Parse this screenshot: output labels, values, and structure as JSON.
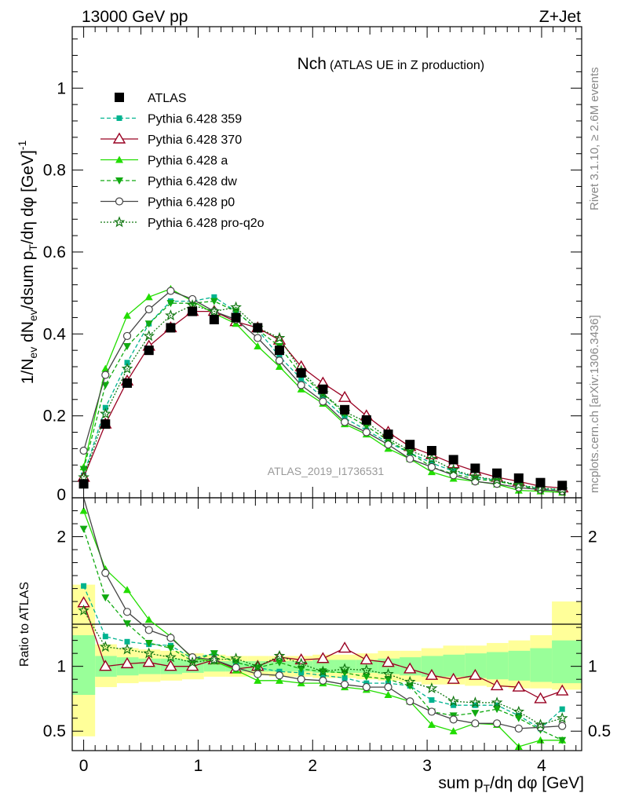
{
  "header": {
    "left": "13000 GeV pp",
    "right": "Z+Jet"
  },
  "side_labels": {
    "rivet": "Rivet 3.1.10, ≥ 2.6M events",
    "mcplots": "mcplots.cern.ch [arXiv:1306.3436]"
  },
  "chart_data": [
    {
      "type": "line",
      "title": "Nch",
      "subtitle": "(ATLAS UE in Z production)",
      "ylabel": "1/N_ev dN_ev/dsum p_T/dη dφ [GeV]^-1",
      "watermark": "ATLAS_2019_I1736531",
      "xlim": [
        -0.1,
        4.35
      ],
      "ylim": [
        0,
        1.15
      ],
      "yticks": [
        0.2,
        0.4,
        0.6,
        0.8,
        1
      ],
      "ytick_labels": [
        "0.2",
        "0.4",
        "0.6",
        "0.8",
        "1"
      ],
      "legend_position": "top-left",
      "x": [
        0,
        0.19,
        0.38,
        0.57,
        0.76,
        0.95,
        1.14,
        1.33,
        1.52,
        1.71,
        1.9,
        2.09,
        2.28,
        2.47,
        2.66,
        2.85,
        3.04,
        3.23,
        3.42,
        3.61,
        3.8,
        3.99,
        4.18
      ],
      "series": [
        {
          "name": "ATLAS",
          "color": "#000000",
          "marker": "square-filled",
          "line": "none",
          "values": [
            0.034,
            0.18,
            0.28,
            0.36,
            0.415,
            0.455,
            0.435,
            0.44,
            0.415,
            0.36,
            0.305,
            0.265,
            0.215,
            0.19,
            0.155,
            0.13,
            0.115,
            0.093,
            0.072,
            0.06,
            0.048,
            0.037,
            0.03
          ]
        },
        {
          "name": "Pythia 6.428 359",
          "color": "#00b38f",
          "marker": "square-small",
          "line": "dashed",
          "values": [
            0.055,
            0.22,
            0.33,
            0.425,
            0.48,
            0.48,
            0.49,
            0.455,
            0.41,
            0.345,
            0.29,
            0.245,
            0.195,
            0.165,
            0.135,
            0.11,
            0.085,
            0.065,
            0.05,
            0.042,
            0.03,
            0.022,
            0.02
          ]
        },
        {
          "name": "Pythia 6.428 370",
          "color": "#990022",
          "marker": "triangle-open",
          "line": "solid",
          "values": [
            0.05,
            0.18,
            0.285,
            0.37,
            0.415,
            0.455,
            0.455,
            0.43,
            0.415,
            0.385,
            0.32,
            0.28,
            0.245,
            0.2,
            0.16,
            0.125,
            0.105,
            0.083,
            0.065,
            0.05,
            0.04,
            0.028,
            0.024
          ]
        },
        {
          "name": "Pythia 6.428 a",
          "color": "#22dd00",
          "marker": "triangle-filled",
          "line": "solid",
          "values": [
            0.075,
            0.315,
            0.445,
            0.49,
            0.51,
            0.48,
            0.45,
            0.425,
            0.37,
            0.32,
            0.265,
            0.23,
            0.18,
            0.155,
            0.12,
            0.095,
            0.063,
            0.047,
            0.04,
            0.033,
            0.018,
            0.016,
            0.013
          ]
        },
        {
          "name": "Pythia 6.428 dw",
          "color": "#11aa11",
          "marker": "triangle-down-filled",
          "line": "dashed",
          "values": [
            0.07,
            0.275,
            0.37,
            0.425,
            0.475,
            0.475,
            0.48,
            0.455,
            0.41,
            0.37,
            0.3,
            0.255,
            0.205,
            0.175,
            0.14,
            0.11,
            0.075,
            0.058,
            0.046,
            0.04,
            0.03,
            0.019,
            0.017
          ]
        },
        {
          "name": "Pythia 6.428 p0",
          "color": "#444444",
          "marker": "circle-open",
          "line": "solid",
          "values": [
            0.115,
            0.3,
            0.395,
            0.46,
            0.505,
            0.485,
            0.455,
            0.435,
            0.39,
            0.335,
            0.275,
            0.235,
            0.185,
            0.16,
            0.13,
            0.095,
            0.075,
            0.055,
            0.04,
            0.034,
            0.025,
            0.02,
            0.016
          ]
        },
        {
          "name": "Pythia 6.428 pro-q2o",
          "color": "#117711",
          "marker": "star-open",
          "line": "dotted",
          "values": [
            0.05,
            0.205,
            0.315,
            0.395,
            0.445,
            0.47,
            0.455,
            0.465,
            0.415,
            0.39,
            0.31,
            0.255,
            0.21,
            0.185,
            0.145,
            0.115,
            0.095,
            0.068,
            0.052,
            0.043,
            0.031,
            0.024,
            0.02
          ]
        }
      ]
    },
    {
      "type": "line",
      "ylabel": "Ratio to ATLAS",
      "xlabel": "sum p_T/dη dφ [GeV]",
      "xlim": [
        -0.1,
        4.35
      ],
      "ylim": [
        0.35,
        2.3
      ],
      "yticks": [
        0.5,
        1,
        2
      ],
      "ytick_labels": [
        "0.5",
        "1",
        "2"
      ],
      "xticks": [
        0,
        1,
        2,
        3,
        4
      ],
      "xtick_labels": [
        "0",
        "1",
        "2",
        "3",
        "4"
      ],
      "reference_line": 1,
      "bands": {
        "x_edges": [
          -0.1,
          0.1,
          0.29,
          0.48,
          0.67,
          0.86,
          1.05,
          1.24,
          1.43,
          1.62,
          1.81,
          2.0,
          2.19,
          2.38,
          2.57,
          2.76,
          2.95,
          3.14,
          3.33,
          3.52,
          3.71,
          3.9,
          4.09,
          4.35
        ],
        "yellow_lo": [
          0.46,
          0.84,
          0.87,
          0.88,
          0.89,
          0.9,
          0.92,
          0.92,
          0.93,
          0.92,
          0.92,
          0.91,
          0.91,
          0.9,
          0.89,
          0.88,
          0.86,
          0.86,
          0.85,
          0.84,
          0.83,
          0.83,
          0.82
        ],
        "yellow_hi": [
          1.63,
          1.17,
          1.14,
          1.13,
          1.12,
          1.1,
          1.09,
          1.08,
          1.08,
          1.08,
          1.08,
          1.09,
          1.09,
          1.1,
          1.12,
          1.12,
          1.14,
          1.16,
          1.16,
          1.18,
          1.2,
          1.24,
          1.5
        ],
        "green_lo": [
          0.78,
          0.92,
          0.93,
          0.94,
          0.94,
          0.95,
          0.96,
          0.96,
          0.96,
          0.96,
          0.96,
          0.95,
          0.95,
          0.95,
          0.94,
          0.93,
          0.92,
          0.92,
          0.91,
          0.9,
          0.89,
          0.88,
          0.87
        ],
        "green_hi": [
          1.24,
          1.08,
          1.07,
          1.06,
          1.06,
          1.05,
          1.04,
          1.04,
          1.04,
          1.04,
          1.04,
          1.05,
          1.05,
          1.05,
          1.06,
          1.07,
          1.08,
          1.09,
          1.1,
          1.11,
          1.12,
          1.14,
          1.2
        ]
      },
      "x": [
        0,
        0.19,
        0.38,
        0.57,
        0.76,
        0.95,
        1.14,
        1.33,
        1.52,
        1.71,
        1.9,
        2.09,
        2.28,
        2.47,
        2.66,
        2.85,
        3.04,
        3.23,
        3.42,
        3.61,
        3.8,
        3.99,
        4.18
      ],
      "series": [
        {
          "name": "Pythia 6.428 359",
          "color": "#00b38f",
          "marker": "square-small",
          "line": "dashed",
          "values": [
            1.62,
            1.23,
            1.19,
            1.17,
            1.16,
            1.06,
            1.1,
            1.03,
            0.99,
            0.96,
            0.95,
            0.93,
            0.91,
            0.87,
            0.87,
            0.85,
            0.74,
            0.7,
            0.7,
            0.7,
            0.62,
            0.52,
            0.67
          ]
        },
        {
          "name": "Pythia 6.428 370",
          "color": "#990022",
          "marker": "triangle-open",
          "line": "solid",
          "values": [
            1.49,
            1.0,
            1.02,
            1.03,
            1.0,
            1.0,
            1.05,
            0.98,
            1.0,
            1.07,
            1.05,
            1.06,
            1.14,
            1.05,
            1.03,
            0.98,
            0.93,
            0.9,
            0.93,
            0.85,
            0.84,
            0.75,
            0.81
          ]
        },
        {
          "name": "Pythia 6.428 a",
          "color": "#22dd00",
          "marker": "triangle-filled",
          "line": "solid",
          "values": [
            2.2,
            1.75,
            1.59,
            1.36,
            1.23,
            1.06,
            1.04,
            0.97,
            0.89,
            0.89,
            0.87,
            0.87,
            0.84,
            0.82,
            0.78,
            0.73,
            0.55,
            0.5,
            0.56,
            0.55,
            0.38,
            0.43,
            0.43
          ]
        },
        {
          "name": "Pythia 6.428 dw",
          "color": "#11aa11",
          "marker": "triangle-down-filled",
          "line": "dashed",
          "values": [
            2.06,
            1.53,
            1.33,
            1.18,
            1.14,
            1.04,
            1.1,
            1.03,
            0.99,
            1.03,
            0.98,
            0.96,
            0.95,
            0.92,
            0.9,
            0.85,
            0.65,
            0.62,
            0.64,
            0.67,
            0.6,
            0.51,
            0.43
          ]
        },
        {
          "name": "Pythia 6.428 p0",
          "color": "#444444",
          "marker": "circle-open",
          "line": "solid",
          "values": [
            3.0,
            1.72,
            1.42,
            1.28,
            1.22,
            1.07,
            1.05,
            0.99,
            0.94,
            0.93,
            0.9,
            0.89,
            0.86,
            0.84,
            0.84,
            0.73,
            0.65,
            0.59,
            0.56,
            0.56,
            0.52,
            0.53,
            0.54
          ]
        },
        {
          "name": "Pythia 6.428 pro-q2o",
          "color": "#117711",
          "marker": "star-open",
          "line": "dotted",
          "values": [
            1.43,
            1.15,
            1.13,
            1.1,
            1.07,
            1.03,
            1.05,
            1.06,
            1.0,
            1.08,
            1.02,
            0.96,
            0.98,
            0.97,
            0.94,
            0.88,
            0.83,
            0.73,
            0.72,
            0.72,
            0.65,
            0.55,
            0.6
          ]
        }
      ]
    }
  ]
}
